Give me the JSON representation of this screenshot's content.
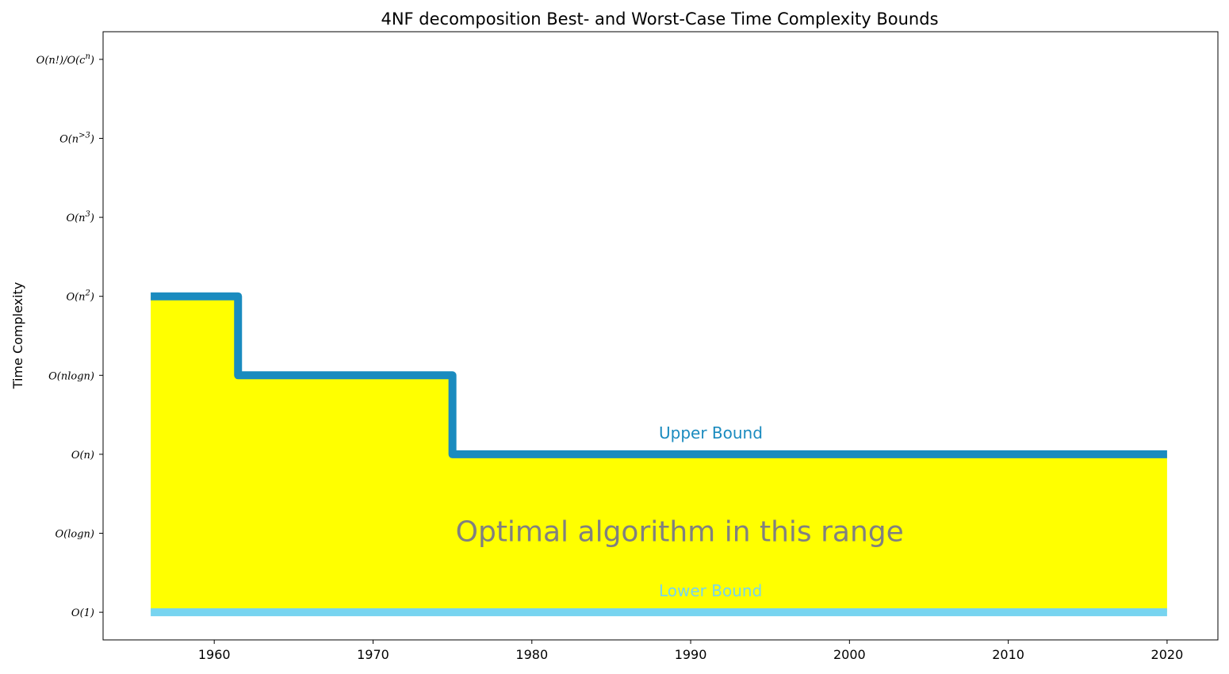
{
  "chart_data": {
    "type": "area",
    "title": "4NF decomposition Best- and Worst-Case Time Complexity Bounds",
    "xlabel": "",
    "ylabel": "Time Complexity",
    "xlim": [
      1953,
      2023.2
    ],
    "ylim": [
      -0.35,
      7.35
    ],
    "x_ticks": [
      1960,
      1970,
      1980,
      1990,
      2000,
      2010,
      2020
    ],
    "y_ticks": [
      {
        "value": 0,
        "label": "O(1)"
      },
      {
        "value": 1,
        "label": "O(logn)"
      },
      {
        "value": 2,
        "label": "O(n)"
      },
      {
        "value": 3,
        "label": "O(nlogn)"
      },
      {
        "value": 4,
        "label": "O(n²)"
      },
      {
        "value": 5,
        "label": "O(n³)"
      },
      {
        "value": 6,
        "label": "O(n>3)"
      },
      {
        "value": 7,
        "label": "O(n!)/O(cⁿ)"
      }
    ],
    "series": [
      {
        "name": "Upper Bound",
        "step": "post",
        "color": "#1a8bbf",
        "points": [
          [
            1956,
            4
          ],
          [
            1961.5,
            4
          ],
          [
            1961.5,
            3
          ],
          [
            1975,
            3
          ],
          [
            1975,
            2
          ],
          [
            2020,
            2
          ]
        ]
      },
      {
        "name": "Lower Bound",
        "step": "post",
        "color": "#77d4f0",
        "points": [
          [
            1956,
            0
          ],
          [
            2020,
            0
          ]
        ]
      }
    ],
    "fill": {
      "color": "#ffff00",
      "between": [
        "Upper Bound",
        "Lower Bound"
      ]
    },
    "annotations": [
      {
        "text": "Upper Bound",
        "x": 1988,
        "y": 2.2,
        "color": "#1a8bbf",
        "role": "upper"
      },
      {
        "text": "Lower Bound",
        "x": 1988,
        "y": 0.2,
        "color": "#77d4f0",
        "role": "lower"
      },
      {
        "text": "Optimal algorithm in this range",
        "x": 1975.2,
        "y": 0.9,
        "color": "#808080",
        "role": "range"
      }
    ],
    "grid": false,
    "legend": "none"
  }
}
